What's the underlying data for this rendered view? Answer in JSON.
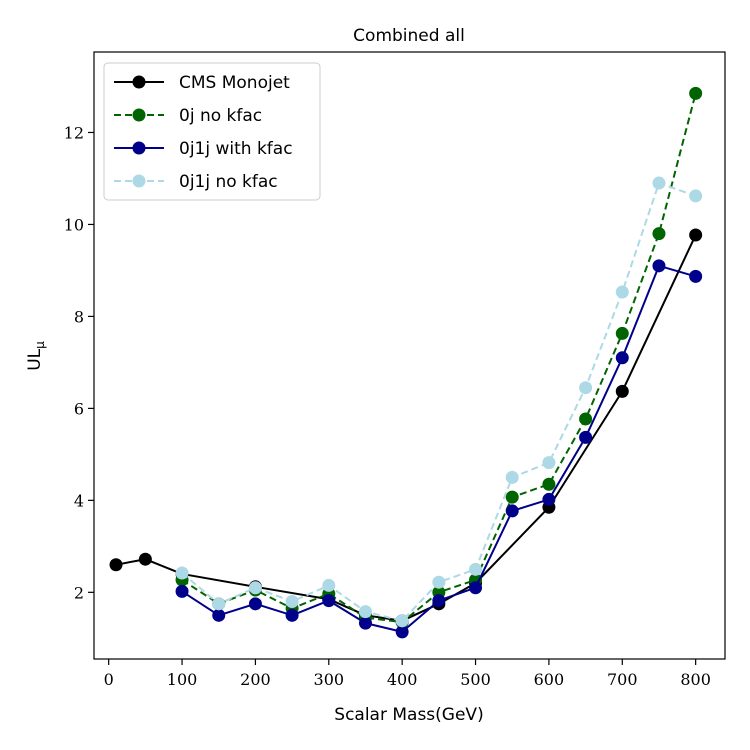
{
  "chart_data": {
    "type": "line",
    "title": "Combined all",
    "xlabel": "Scalar Mass(GeV)",
    "ylabel": "UL",
    "ylabel_subscript": "μ",
    "xlim": [
      -20,
      840
    ],
    "ylim": [
      0.55,
      13.75
    ],
    "xticks": [
      0,
      100,
      200,
      300,
      400,
      500,
      600,
      700,
      800
    ],
    "yticks": [
      2,
      4,
      6,
      8,
      10,
      12
    ],
    "grid": false,
    "legend_position": "top-left",
    "series": [
      {
        "name": "CMS Monojet",
        "color": "#000000",
        "dashed": false,
        "points": [
          [
            10,
            2.6
          ],
          [
            50,
            2.72
          ],
          [
            100,
            2.4
          ],
          [
            200,
            2.12
          ],
          [
            300,
            1.85
          ],
          [
            350,
            1.5
          ],
          [
            400,
            1.38
          ],
          [
            450,
            1.75
          ],
          [
            500,
            2.2
          ],
          [
            600,
            3.85
          ],
          [
            700,
            6.37
          ],
          [
            800,
            9.77
          ]
        ]
      },
      {
        "name": "0j no kfac",
        "color": "#006400",
        "dashed": true,
        "points": [
          [
            100,
            2.27
          ],
          [
            150,
            1.75
          ],
          [
            200,
            2.05
          ],
          [
            250,
            1.65
          ],
          [
            300,
            1.97
          ],
          [
            350,
            1.45
          ],
          [
            400,
            1.35
          ],
          [
            450,
            2.0
          ],
          [
            500,
            2.27
          ],
          [
            550,
            4.07
          ],
          [
            600,
            4.35
          ],
          [
            650,
            5.77
          ],
          [
            700,
            7.63
          ],
          [
            750,
            9.8
          ],
          [
            800,
            12.85
          ]
        ]
      },
      {
        "name": "0j1j with kfac",
        "color": "#00008b",
        "dashed": false,
        "points": [
          [
            100,
            2.02
          ],
          [
            150,
            1.5
          ],
          [
            200,
            1.75
          ],
          [
            250,
            1.5
          ],
          [
            300,
            1.82
          ],
          [
            350,
            1.33
          ],
          [
            400,
            1.14
          ],
          [
            450,
            1.82
          ],
          [
            500,
            2.1
          ],
          [
            550,
            3.77
          ],
          [
            600,
            4.02
          ],
          [
            650,
            5.37
          ],
          [
            700,
            7.1
          ],
          [
            750,
            9.1
          ],
          [
            800,
            8.87
          ]
        ]
      },
      {
        "name": "0j1j no kfac",
        "color": "#add8e6",
        "dashed": true,
        "points": [
          [
            100,
            2.42
          ],
          [
            150,
            1.75
          ],
          [
            200,
            2.1
          ],
          [
            250,
            1.8
          ],
          [
            300,
            2.15
          ],
          [
            350,
            1.58
          ],
          [
            400,
            1.38
          ],
          [
            450,
            2.22
          ],
          [
            500,
            2.5
          ],
          [
            550,
            4.5
          ],
          [
            600,
            4.82
          ],
          [
            650,
            6.45
          ],
          [
            700,
            8.53
          ],
          [
            750,
            10.9
          ],
          [
            800,
            10.62
          ]
        ]
      }
    ]
  }
}
